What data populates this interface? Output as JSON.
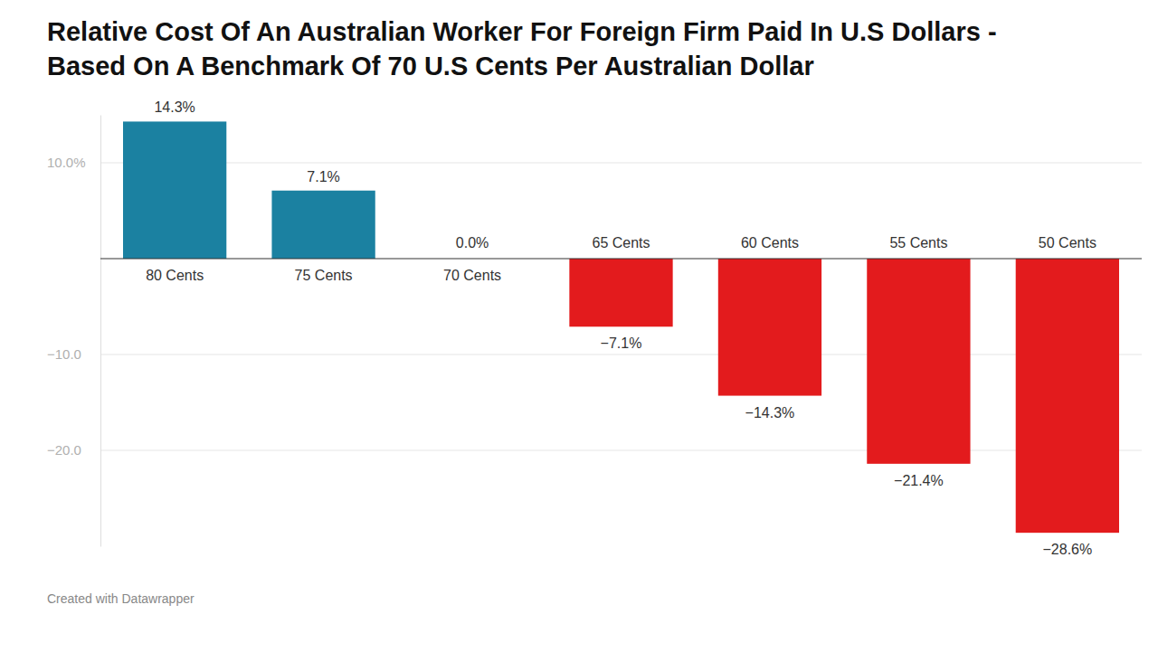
{
  "chart_data": {
    "type": "bar",
    "title": [
      "Relative Cost Of An Australian Worker For Foreign Firm Paid In U.S Dollars -",
      "Based On A Benchmark Of 70 U.S Cents Per Australian Dollar"
    ],
    "categories": [
      "80 Cents",
      "75 Cents",
      "70 Cents",
      "65 Cents",
      "60 Cents",
      "55 Cents",
      "50 Cents"
    ],
    "values": [
      14.3,
      7.1,
      0.0,
      -7.1,
      -14.3,
      -21.4,
      -28.6
    ],
    "value_labels": [
      "14.3%",
      "7.1%",
      "0.0%",
      "−7.1%",
      "−14.3%",
      "−21.4%",
      "−28.6%"
    ],
    "colors": [
      "#1b81a1",
      "#1b81a1",
      "#1b81a1",
      "#e31b1d",
      "#e31b1d",
      "#e31b1d",
      "#e31b1d"
    ],
    "ylim": [
      -30,
      15
    ],
    "yticks": [
      {
        "value": 10,
        "label": "10.0%"
      },
      {
        "value": -10,
        "label": "−10.0"
      },
      {
        "value": -20,
        "label": "−20.0"
      }
    ],
    "grid": true,
    "data_labels": true,
    "footer": "Created with Datawrapper"
  }
}
